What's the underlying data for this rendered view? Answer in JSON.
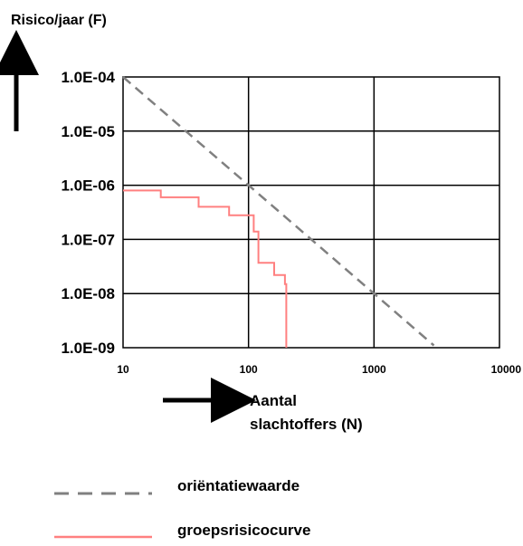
{
  "chart_data": {
    "type": "line",
    "ylabel": "Risico/jaar (F)",
    "xlabel": "Aantal\nslachtoffers (N)",
    "xscale": "log",
    "yscale": "log",
    "xlim": [
      10,
      10000
    ],
    "ylim": [
      1e-09,
      0.0001
    ],
    "grid": true,
    "x_ticks": [
      "10",
      "100",
      "1000",
      "10000"
    ],
    "y_ticks": [
      "1.0E-04",
      "1.0E-05",
      "1.0E-06",
      "1.0E-07",
      "1.0E-08",
      "1.0E-09"
    ],
    "legend_position": "bottom",
    "series": [
      {
        "name": "oriëntatiewaarde",
        "style": "dashed",
        "color": "#808080",
        "x": [
          10,
          100,
          1000,
          3000
        ],
        "y": [
          0.0001,
          1e-06,
          1e-08,
          1.1e-09
        ]
      },
      {
        "name": "groepsrisicocurve",
        "style": "solid",
        "color": "#ff8080",
        "x": [
          10,
          20,
          20,
          40,
          40,
          70,
          70,
          110,
          110,
          120,
          120,
          160,
          160,
          195,
          195,
          200,
          200
        ],
        "y": [
          8e-07,
          8e-07,
          6e-07,
          6e-07,
          4e-07,
          4e-07,
          2.8e-07,
          2.8e-07,
          1.4e-07,
          1.4e-07,
          3.7e-08,
          3.7e-08,
          2.2e-08,
          2.2e-08,
          1.5e-08,
          1.5e-08,
          1e-09
        ]
      }
    ]
  }
}
